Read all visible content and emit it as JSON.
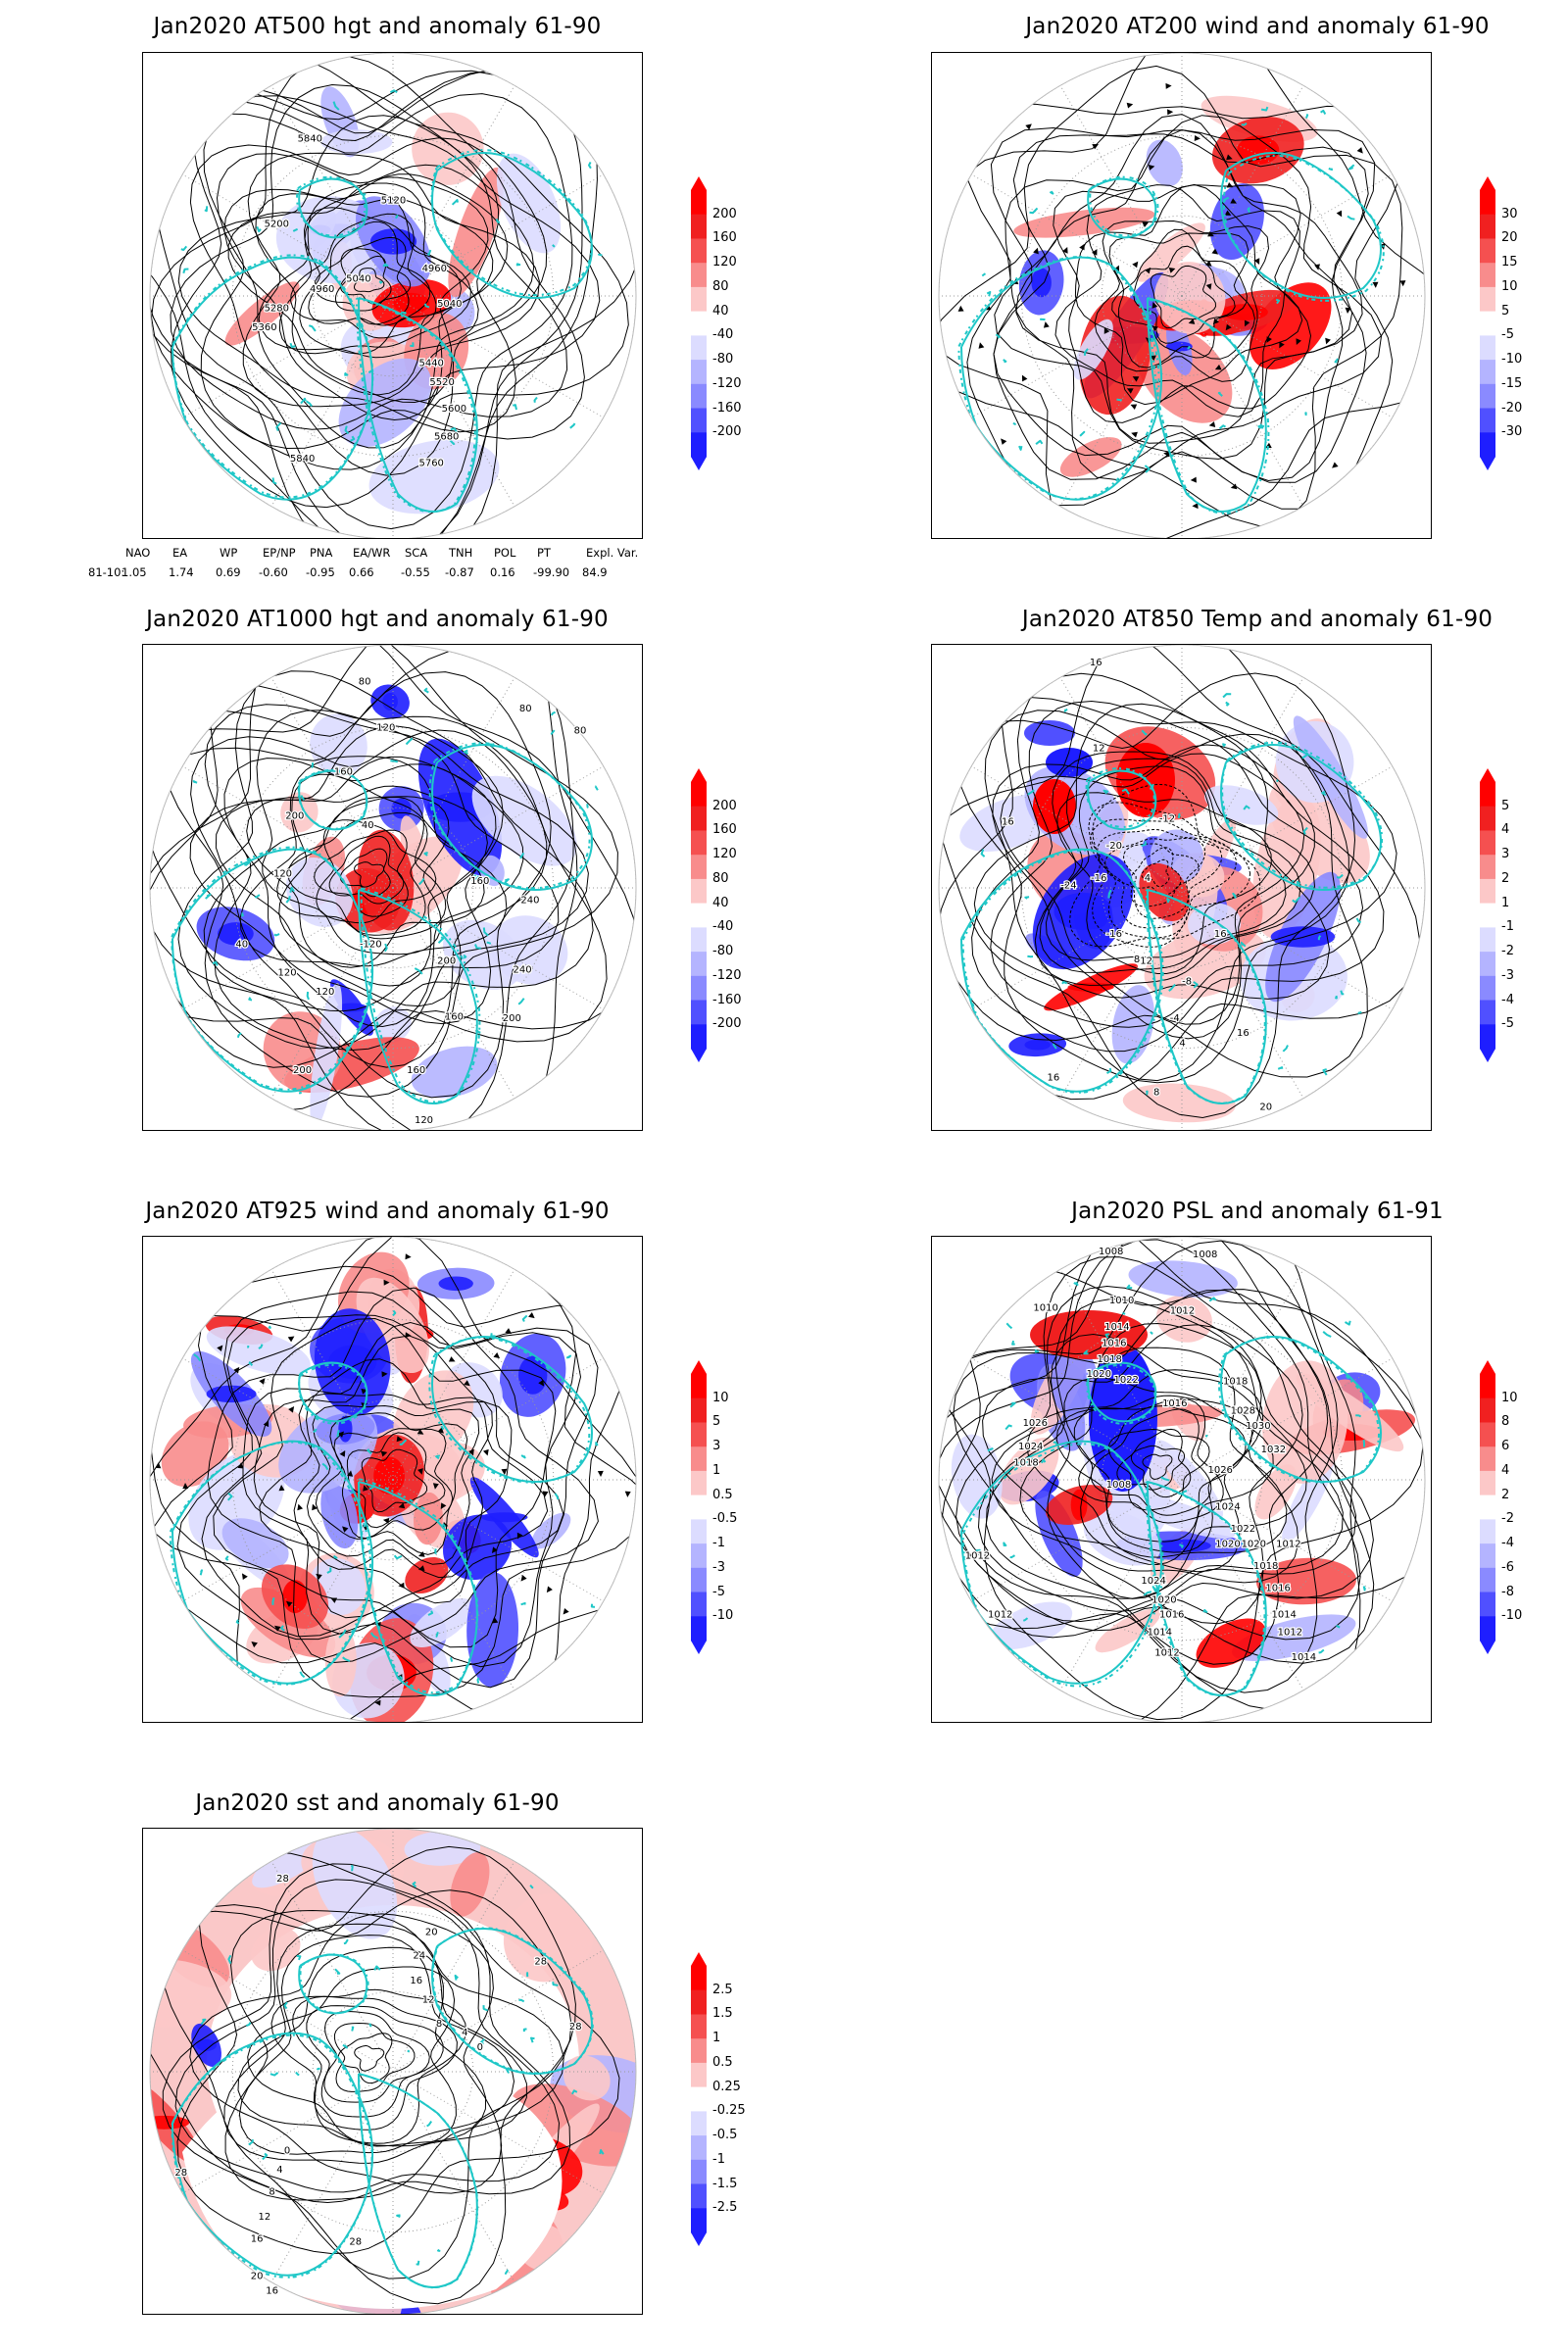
{
  "panels": [
    {
      "id": "p1",
      "title": "Jan2020 AT500 hgt and anomaly 61-90",
      "colorbar": [
        "200",
        "160",
        "120",
        "80",
        "40",
        "-40",
        "-80",
        "-120",
        "-160",
        "-200"
      ],
      "labels": [
        "5840",
        "5200",
        "5120",
        "5040",
        "4960",
        "4960",
        "5040",
        "5440",
        "5520",
        "5600",
        "5680",
        "5760",
        "5840",
        "5360",
        "5280"
      ]
    },
    {
      "id": "p2",
      "title": "Jan2020 AT200 wind and anomaly 61-90",
      "colorbar": [
        "30",
        "20",
        "15",
        "10",
        "5",
        "-5",
        "-10",
        "-15",
        "-20",
        "-30"
      ],
      "labels": []
    },
    {
      "id": "p3",
      "title": "Jan2020 AT1000 hgt and anomaly 61-90",
      "colorbar": [
        "200",
        "160",
        "120",
        "80",
        "40",
        "-40",
        "-80",
        "-120",
        "-160",
        "-200"
      ],
      "labels": [
        "80",
        "120",
        "160",
        "80",
        "80",
        "200",
        "160",
        "240",
        "240",
        "200",
        "120",
        "200",
        "160",
        "120",
        "200",
        "160",
        "120",
        "40",
        "-120",
        "40",
        "120"
      ]
    },
    {
      "id": "p4",
      "title": "Jan2020 AT850 Temp and anomaly 61-90",
      "colorbar": [
        "5",
        "4",
        "3",
        "2",
        "1",
        "-1",
        "-2",
        "-3",
        "-4",
        "-5"
      ],
      "labels": [
        "16",
        "12",
        "16",
        "16",
        "-12",
        "-16",
        "-20",
        "-24",
        "-16",
        "-12",
        "-8",
        "-4",
        "4",
        "8",
        "16",
        "20",
        "16",
        "8",
        "4"
      ]
    },
    {
      "id": "p5",
      "title": "Jan2020 AT925 wind and anomaly 61-90",
      "colorbar": [
        "10",
        "5",
        "3",
        "1",
        "0.5",
        "-0.5",
        "-1",
        "-3",
        "-5",
        "-10"
      ],
      "labels": []
    },
    {
      "id": "p6",
      "title": "Jan2020 PSL and anomaly 61-91",
      "colorbar": [
        "10",
        "8",
        "6",
        "4",
        "2",
        "-2",
        "-4",
        "-6",
        "-8",
        "-10"
      ],
      "labels": [
        "1008",
        "1008",
        "1010",
        "1012",
        "1010",
        "1014",
        "1016",
        "1018",
        "1020",
        "1022",
        "1026",
        "1024",
        "1018",
        "1016",
        "1018",
        "1020",
        "1012",
        "1012",
        "1024",
        "1020",
        "1016",
        "1014",
        "1012",
        "1014",
        "1012",
        "1008",
        "1030",
        "1032",
        "1028",
        "1026",
        "1024",
        "1022",
        "1020",
        "1018",
        "1016",
        "1014",
        "1012"
      ]
    },
    {
      "id": "p7",
      "title": "Jan2020 sst and anomaly 61-90",
      "colorbar": [
        "2.5",
        "1.5",
        "1",
        "0.5",
        "0.25",
        "-0.25",
        "-0.5",
        "-1",
        "-1.5",
        "-2.5"
      ],
      "labels": [
        "28",
        "24",
        "20",
        "16",
        "12",
        "8",
        "4",
        "0",
        "28",
        "28",
        "28",
        "20",
        "16",
        "12",
        "8",
        "4",
        "0",
        "28",
        "24",
        "16"
      ]
    }
  ],
  "indices": {
    "headers": [
      "NAO",
      "EA",
      "WP",
      "EP/NP",
      "PNA",
      "EA/WR",
      "SCA",
      "TNH",
      "POL",
      "PT",
      "Expl. Var."
    ],
    "row_label": "81-10:",
    "values": [
      "1.05",
      "1.74",
      "0.69",
      "-0.60",
      "-0.95",
      "0.66",
      "-0.55",
      "-0.87",
      "0.16",
      "-99.90",
      "84.9"
    ]
  },
  "colors": {
    "land_outline": "#1fc7c7",
    "anomaly_pos": [
      "#ff0000",
      "#f02020",
      "#f55050",
      "#f88c8c",
      "#fcc8c8"
    ],
    "anomaly_neg": [
      "#dcdcff",
      "#b4b4ff",
      "#8a8aff",
      "#5050ff",
      "#1e1eff"
    ],
    "contour": "#000000"
  }
}
